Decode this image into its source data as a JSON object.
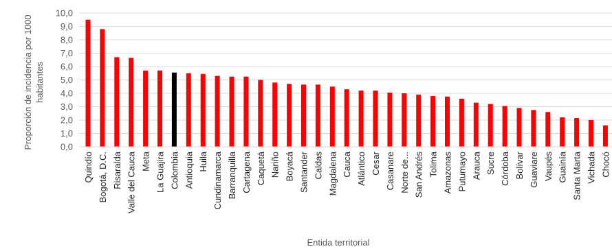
{
  "chart_data": {
    "type": "bar",
    "ylabel_line1": "Proporción de incidencia por 1000",
    "ylabel_line2": "habitantes",
    "xlabel": "Entida territorial",
    "ylim": [
      0,
      10
    ],
    "yticks": [
      "0,0",
      "1,0",
      "2,0",
      "3,0",
      "4,0",
      "5,0",
      "6,0",
      "7,0",
      "8,0",
      "9,0",
      "10,0"
    ],
    "grid": true,
    "colors": {
      "bar": "#ff0000",
      "highlight": "#000000"
    },
    "highlight": "Colombia",
    "categories": [
      "Quindío",
      "Bogotá, D.C.",
      "Risaralda",
      "Valle del Cauca",
      "Meta",
      "La Guajira",
      "Colombia",
      "Antioquia",
      "Huila",
      "Cundinamarca",
      "Barranquilla",
      "Cartagena",
      "Caquetá",
      "Nariño",
      "Boyacá",
      "Santander",
      "Caldas",
      "Magdalena",
      "Cauca",
      "Atlántico",
      "Cesar",
      "Casanare",
      "Norte de...",
      "San Andrés",
      "Tolima",
      "Amazonas",
      "Putumayo",
      "Arauca",
      "Sucre",
      "Córdoba",
      "Bolívar",
      "Guaviare",
      "Vaupés",
      "Guainía",
      "Santa Marta",
      "Vichada",
      "Chocó"
    ],
    "values": [
      9.5,
      8.8,
      6.7,
      6.65,
      5.7,
      5.7,
      5.55,
      5.5,
      5.45,
      5.3,
      5.25,
      5.25,
      5.0,
      4.8,
      4.7,
      4.65,
      4.65,
      4.5,
      4.3,
      4.2,
      4.2,
      4.05,
      4.0,
      3.9,
      3.8,
      3.75,
      3.6,
      3.3,
      3.2,
      3.05,
      2.9,
      2.75,
      2.6,
      2.2,
      2.15,
      2.0,
      1.6
    ]
  }
}
